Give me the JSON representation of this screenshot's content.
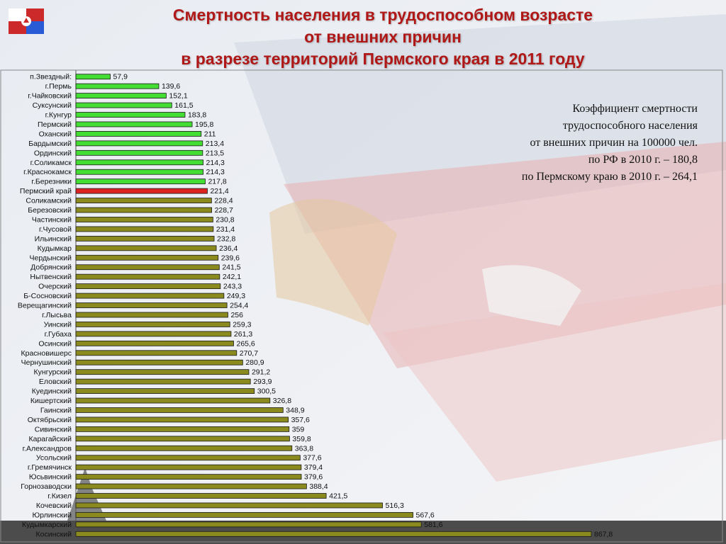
{
  "header": {
    "title_lines": [
      "Смертность населения в трудоспособном возрасте",
      "от внешних причин",
      "в разрезе территорий Пермского края в 2011 году"
    ]
  },
  "note": {
    "lines": [
      "Коэффициент смертности",
      "трудоспособного населения ",
      "от внешних причин на 100000 чел.",
      "по РФ в 2010 г. – 180,8",
      "по Пермскому краю в 2010 г. – 264,1 "
    ]
  },
  "colors": {
    "title": "#b01818",
    "bar_below": "#44dd33",
    "bar_region": "#dd2222",
    "bar_above": "#8a8a1e",
    "bar_stroke": "#1a1a1a"
  },
  "chart_data": {
    "type": "bar",
    "orientation": "horizontal",
    "grid": false,
    "legend": "none",
    "xlim": [
      0,
      900
    ],
    "categories": [
      "п.Звездный:",
      "г.Пермь",
      "г.Чайковский",
      "Суксунский",
      "г.Кунгур",
      "Пермский",
      "Оханский",
      "Бардымский",
      "Ординский",
      "г.Соликамск",
      "г.Краснокамск",
      "г.Березники",
      "Пермский край",
      "Соликамский",
      "Березовский",
      "Частинский",
      "г.Чусовой",
      "Ильинский",
      "Кудымкар",
      "Чердынский",
      "Добрянский",
      "Нытвенский",
      "Очерский",
      "Б-Сосновский",
      "Верещагинский",
      "г.Лысьва",
      "Уинский",
      "г.Губаха",
      "Осинский",
      "Красновишерс",
      "Чернушинский",
      "Кунгурский",
      "Еловский",
      "Куединский",
      "Кишертский",
      "Гаинский",
      "Октябрьский",
      "Сивинский",
      "Карагайский",
      "г.Александров",
      "Усольский",
      "г.Гремячинск",
      "Юсьвинский",
      "Горнозаводски",
      "г.Кизел",
      "Кочевский",
      "Юрлинский",
      "Кудымкарский",
      "Косинский"
    ],
    "values": [
      57.9,
      139.6,
      152.1,
      161.5,
      183.8,
      195.8,
      211,
      213.4,
      213.5,
      214.3,
      214.3,
      217.8,
      221.4,
      228.4,
      228.7,
      230.8,
      231.4,
      232.8,
      236.4,
      239.6,
      241.5,
      242.1,
      243.3,
      249.3,
      254.4,
      256,
      259.3,
      261.3,
      265.6,
      270.7,
      280.9,
      291.2,
      293.9,
      300.5,
      326.8,
      348.9,
      357.6,
      359,
      359.8,
      363.8,
      377.6,
      379.4,
      379.6,
      388.4,
      421.5,
      516.3,
      567.6,
      581.6,
      867.8
    ],
    "data_labels": [
      "57,9",
      "139,6",
      "152,1",
      "161,5",
      "183,8",
      "195,8",
      "211",
      "213,4",
      "213,5",
      "214,3",
      "214,3",
      "217,8",
      "221,4",
      "228,4",
      "228,7",
      "230,8",
      "231,4",
      "232,8",
      "236,4",
      "239,6",
      "241,5",
      "242,1",
      "243,3",
      "249,3",
      "254,4",
      "256",
      "259,3",
      "261,3",
      "265,6",
      "270,7",
      "280,9",
      "291,2",
      "293,9",
      "300,5",
      "326,8",
      "348,9",
      "357,6",
      "359",
      "359,8",
      "363,8",
      "377,6",
      "379,4",
      "379,6",
      "388,4",
      "421,5",
      "516,3",
      "567,6",
      "581,6",
      "867,8"
    ],
    "highlight_category": "Пермский край"
  }
}
